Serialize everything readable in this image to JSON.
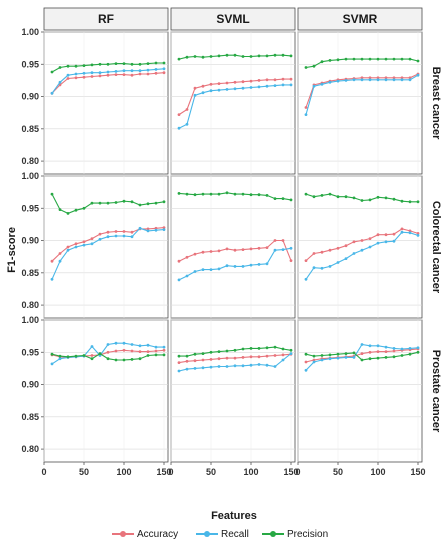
{
  "chart_data": {
    "type": "line",
    "facet_columns": [
      "RF",
      "SVML",
      "SVMR"
    ],
    "facet_rows": [
      "Breast cancer",
      "Colorectal cancer",
      "Prostate cancer"
    ],
    "xlabel": "Features",
    "ylabel": "F1-score",
    "xlim": [
      0,
      155
    ],
    "ylim": [
      0.78,
      1.0
    ],
    "x_ticks": [
      0,
      50,
      100,
      150
    ],
    "y_ticks": [
      0.8,
      0.85,
      0.9,
      0.95,
      1.0
    ],
    "y_tick_labels": [
      "0.80",
      "0.85",
      "0.90",
      "0.95",
      "1.00"
    ],
    "legend_position": "bottom",
    "grid": true,
    "x": [
      10,
      20,
      30,
      40,
      50,
      60,
      70,
      80,
      90,
      100,
      110,
      120,
      130,
      140,
      150
    ],
    "series_names": [
      "Accuracy",
      "Recall",
      "Precision"
    ],
    "series_colors": [
      "#e8747c",
      "#49b7e8",
      "#27a844"
    ],
    "panels": [
      {
        "row": "Breast cancer",
        "col": "RF",
        "series": [
          {
            "name": "Accuracy",
            "values": [
              0.905,
              0.918,
              0.928,
              0.929,
              0.93,
              0.931,
              0.932,
              0.933,
              0.934,
              0.934,
              0.933,
              0.935,
              0.935,
              0.936,
              0.937
            ]
          },
          {
            "name": "Recall",
            "values": [
              0.905,
              0.922,
              0.933,
              0.935,
              0.936,
              0.937,
              0.937,
              0.938,
              0.939,
              0.94,
              0.94,
              0.94,
              0.941,
              0.942,
              0.943
            ]
          },
          {
            "name": "Precision",
            "values": [
              0.938,
              0.945,
              0.947,
              0.947,
              0.948,
              0.949,
              0.95,
              0.95,
              0.951,
              0.951,
              0.95,
              0.95,
              0.951,
              0.952,
              0.952
            ]
          }
        ]
      },
      {
        "row": "Breast cancer",
        "col": "SVML",
        "series": [
          {
            "name": "Accuracy",
            "values": [
              0.872,
              0.88,
              0.913,
              0.916,
              0.919,
              0.92,
              0.921,
              0.922,
              0.923,
              0.924,
              0.925,
              0.926,
              0.926,
              0.927,
              0.927
            ]
          },
          {
            "name": "Recall",
            "values": [
              0.851,
              0.857,
              0.902,
              0.906,
              0.909,
              0.91,
              0.911,
              0.912,
              0.913,
              0.914,
              0.915,
              0.916,
              0.917,
              0.918,
              0.918
            ]
          },
          {
            "name": "Precision",
            "values": [
              0.958,
              0.961,
              0.962,
              0.961,
              0.962,
              0.963,
              0.964,
              0.964,
              0.962,
              0.962,
              0.963,
              0.963,
              0.964,
              0.964,
              0.963
            ]
          }
        ]
      },
      {
        "row": "Breast cancer",
        "col": "SVMR",
        "series": [
          {
            "name": "Accuracy",
            "values": [
              0.883,
              0.918,
              0.921,
              0.924,
              0.926,
              0.927,
              0.928,
              0.929,
              0.929,
              0.929,
              0.929,
              0.929,
              0.929,
              0.929,
              0.935
            ]
          },
          {
            "name": "Recall",
            "values": [
              0.872,
              0.916,
              0.919,
              0.922,
              0.924,
              0.925,
              0.926,
              0.926,
              0.926,
              0.926,
              0.926,
              0.926,
              0.926,
              0.926,
              0.933
            ]
          },
          {
            "name": "Precision",
            "values": [
              0.945,
              0.947,
              0.954,
              0.956,
              0.957,
              0.958,
              0.958,
              0.958,
              0.958,
              0.958,
              0.958,
              0.958,
              0.958,
              0.958,
              0.955
            ]
          }
        ]
      },
      {
        "row": "Colorectal cancer",
        "col": "RF",
        "series": [
          {
            "name": "Accuracy",
            "values": [
              0.868,
              0.88,
              0.89,
              0.895,
              0.898,
              0.903,
              0.91,
              0.913,
              0.914,
              0.914,
              0.913,
              0.918,
              0.918,
              0.919,
              0.92
            ]
          },
          {
            "name": "Recall",
            "values": [
              0.84,
              0.868,
              0.885,
              0.89,
              0.893,
              0.895,
              0.902,
              0.906,
              0.907,
              0.907,
              0.906,
              0.919,
              0.915,
              0.916,
              0.917
            ]
          },
          {
            "name": "Precision",
            "values": [
              0.972,
              0.948,
              0.942,
              0.947,
              0.95,
              0.958,
              0.958,
              0.958,
              0.959,
              0.961,
              0.96,
              0.955,
              0.957,
              0.958,
              0.96
            ]
          }
        ]
      },
      {
        "row": "Colorectal cancer",
        "col": "SVML",
        "series": [
          {
            "name": "Accuracy",
            "values": [
              0.868,
              0.874,
              0.879,
              0.882,
              0.883,
              0.884,
              0.887,
              0.885,
              0.886,
              0.887,
              0.888,
              0.889,
              0.9,
              0.9,
              0.869
            ]
          },
          {
            "name": "Recall",
            "values": [
              0.839,
              0.845,
              0.852,
              0.855,
              0.855,
              0.856,
              0.861,
              0.86,
              0.86,
              0.862,
              0.863,
              0.864,
              0.885,
              0.886,
              0.888
            ]
          },
          {
            "name": "Precision",
            "values": [
              0.973,
              0.972,
              0.971,
              0.972,
              0.972,
              0.972,
              0.974,
              0.972,
              0.972,
              0.971,
              0.971,
              0.97,
              0.965,
              0.965,
              0.963
            ]
          }
        ]
      },
      {
        "row": "Colorectal cancer",
        "col": "SVMR",
        "series": [
          {
            "name": "Accuracy",
            "values": [
              0.869,
              0.88,
              0.882,
              0.885,
              0.888,
              0.892,
              0.898,
              0.9,
              0.903,
              0.909,
              0.909,
              0.91,
              0.918,
              0.915,
              0.911
            ]
          },
          {
            "name": "Recall",
            "values": [
              0.84,
              0.858,
              0.857,
              0.86,
              0.866,
              0.872,
              0.88,
              0.885,
              0.89,
              0.896,
              0.898,
              0.899,
              0.913,
              0.912,
              0.908
            ]
          },
          {
            "name": "Precision",
            "values": [
              0.972,
              0.968,
              0.97,
              0.972,
              0.968,
              0.968,
              0.966,
              0.962,
              0.963,
              0.967,
              0.966,
              0.964,
              0.961,
              0.96,
              0.96
            ]
          }
        ]
      },
      {
        "row": "Prostate cancer",
        "col": "RF",
        "series": [
          {
            "name": "Accuracy",
            "values": [
              0.946,
              0.943,
              0.942,
              0.943,
              0.944,
              0.945,
              0.946,
              0.95,
              0.952,
              0.953,
              0.952,
              0.951,
              0.951,
              0.952,
              0.953
            ]
          },
          {
            "name": "Recall",
            "values": [
              0.932,
              0.94,
              0.942,
              0.943,
              0.944,
              0.959,
              0.945,
              0.962,
              0.964,
              0.964,
              0.962,
              0.96,
              0.961,
              0.958,
              0.958
            ]
          },
          {
            "name": "Precision",
            "values": [
              0.947,
              0.944,
              0.943,
              0.944,
              0.945,
              0.94,
              0.948,
              0.94,
              0.938,
              0.938,
              0.939,
              0.94,
              0.945,
              0.946,
              0.946
            ]
          }
        ]
      },
      {
        "row": "Prostate cancer",
        "col": "SVML",
        "series": [
          {
            "name": "Accuracy",
            "values": [
              0.934,
              0.936,
              0.937,
              0.938,
              0.939,
              0.94,
              0.941,
              0.941,
              0.942,
              0.943,
              0.943,
              0.944,
              0.945,
              0.946,
              0.947
            ]
          },
          {
            "name": "Recall",
            "values": [
              0.921,
              0.924,
              0.925,
              0.926,
              0.927,
              0.928,
              0.928,
              0.929,
              0.929,
              0.93,
              0.931,
              0.93,
              0.928,
              0.938,
              0.948
            ]
          },
          {
            "name": "Precision",
            "values": [
              0.944,
              0.944,
              0.947,
              0.948,
              0.95,
              0.951,
              0.952,
              0.953,
              0.955,
              0.956,
              0.956,
              0.957,
              0.958,
              0.955,
              0.953
            ]
          }
        ]
      },
      {
        "row": "Prostate cancer",
        "col": "SVMR",
        "series": [
          {
            "name": "Accuracy",
            "values": [
              0.935,
              0.938,
              0.94,
              0.941,
              0.942,
              0.943,
              0.944,
              0.948,
              0.95,
              0.951,
              0.951,
              0.952,
              0.953,
              0.954,
              0.955
            ]
          },
          {
            "name": "Recall",
            "values": [
              0.922,
              0.935,
              0.938,
              0.94,
              0.941,
              0.942,
              0.942,
              0.962,
              0.96,
              0.96,
              0.958,
              0.956,
              0.955,
              0.956,
              0.957
            ]
          },
          {
            "name": "Precision",
            "values": [
              0.947,
              0.944,
              0.945,
              0.946,
              0.947,
              0.948,
              0.949,
              0.938,
              0.94,
              0.941,
              0.942,
              0.943,
              0.945,
              0.947,
              0.95
            ]
          }
        ]
      }
    ]
  }
}
